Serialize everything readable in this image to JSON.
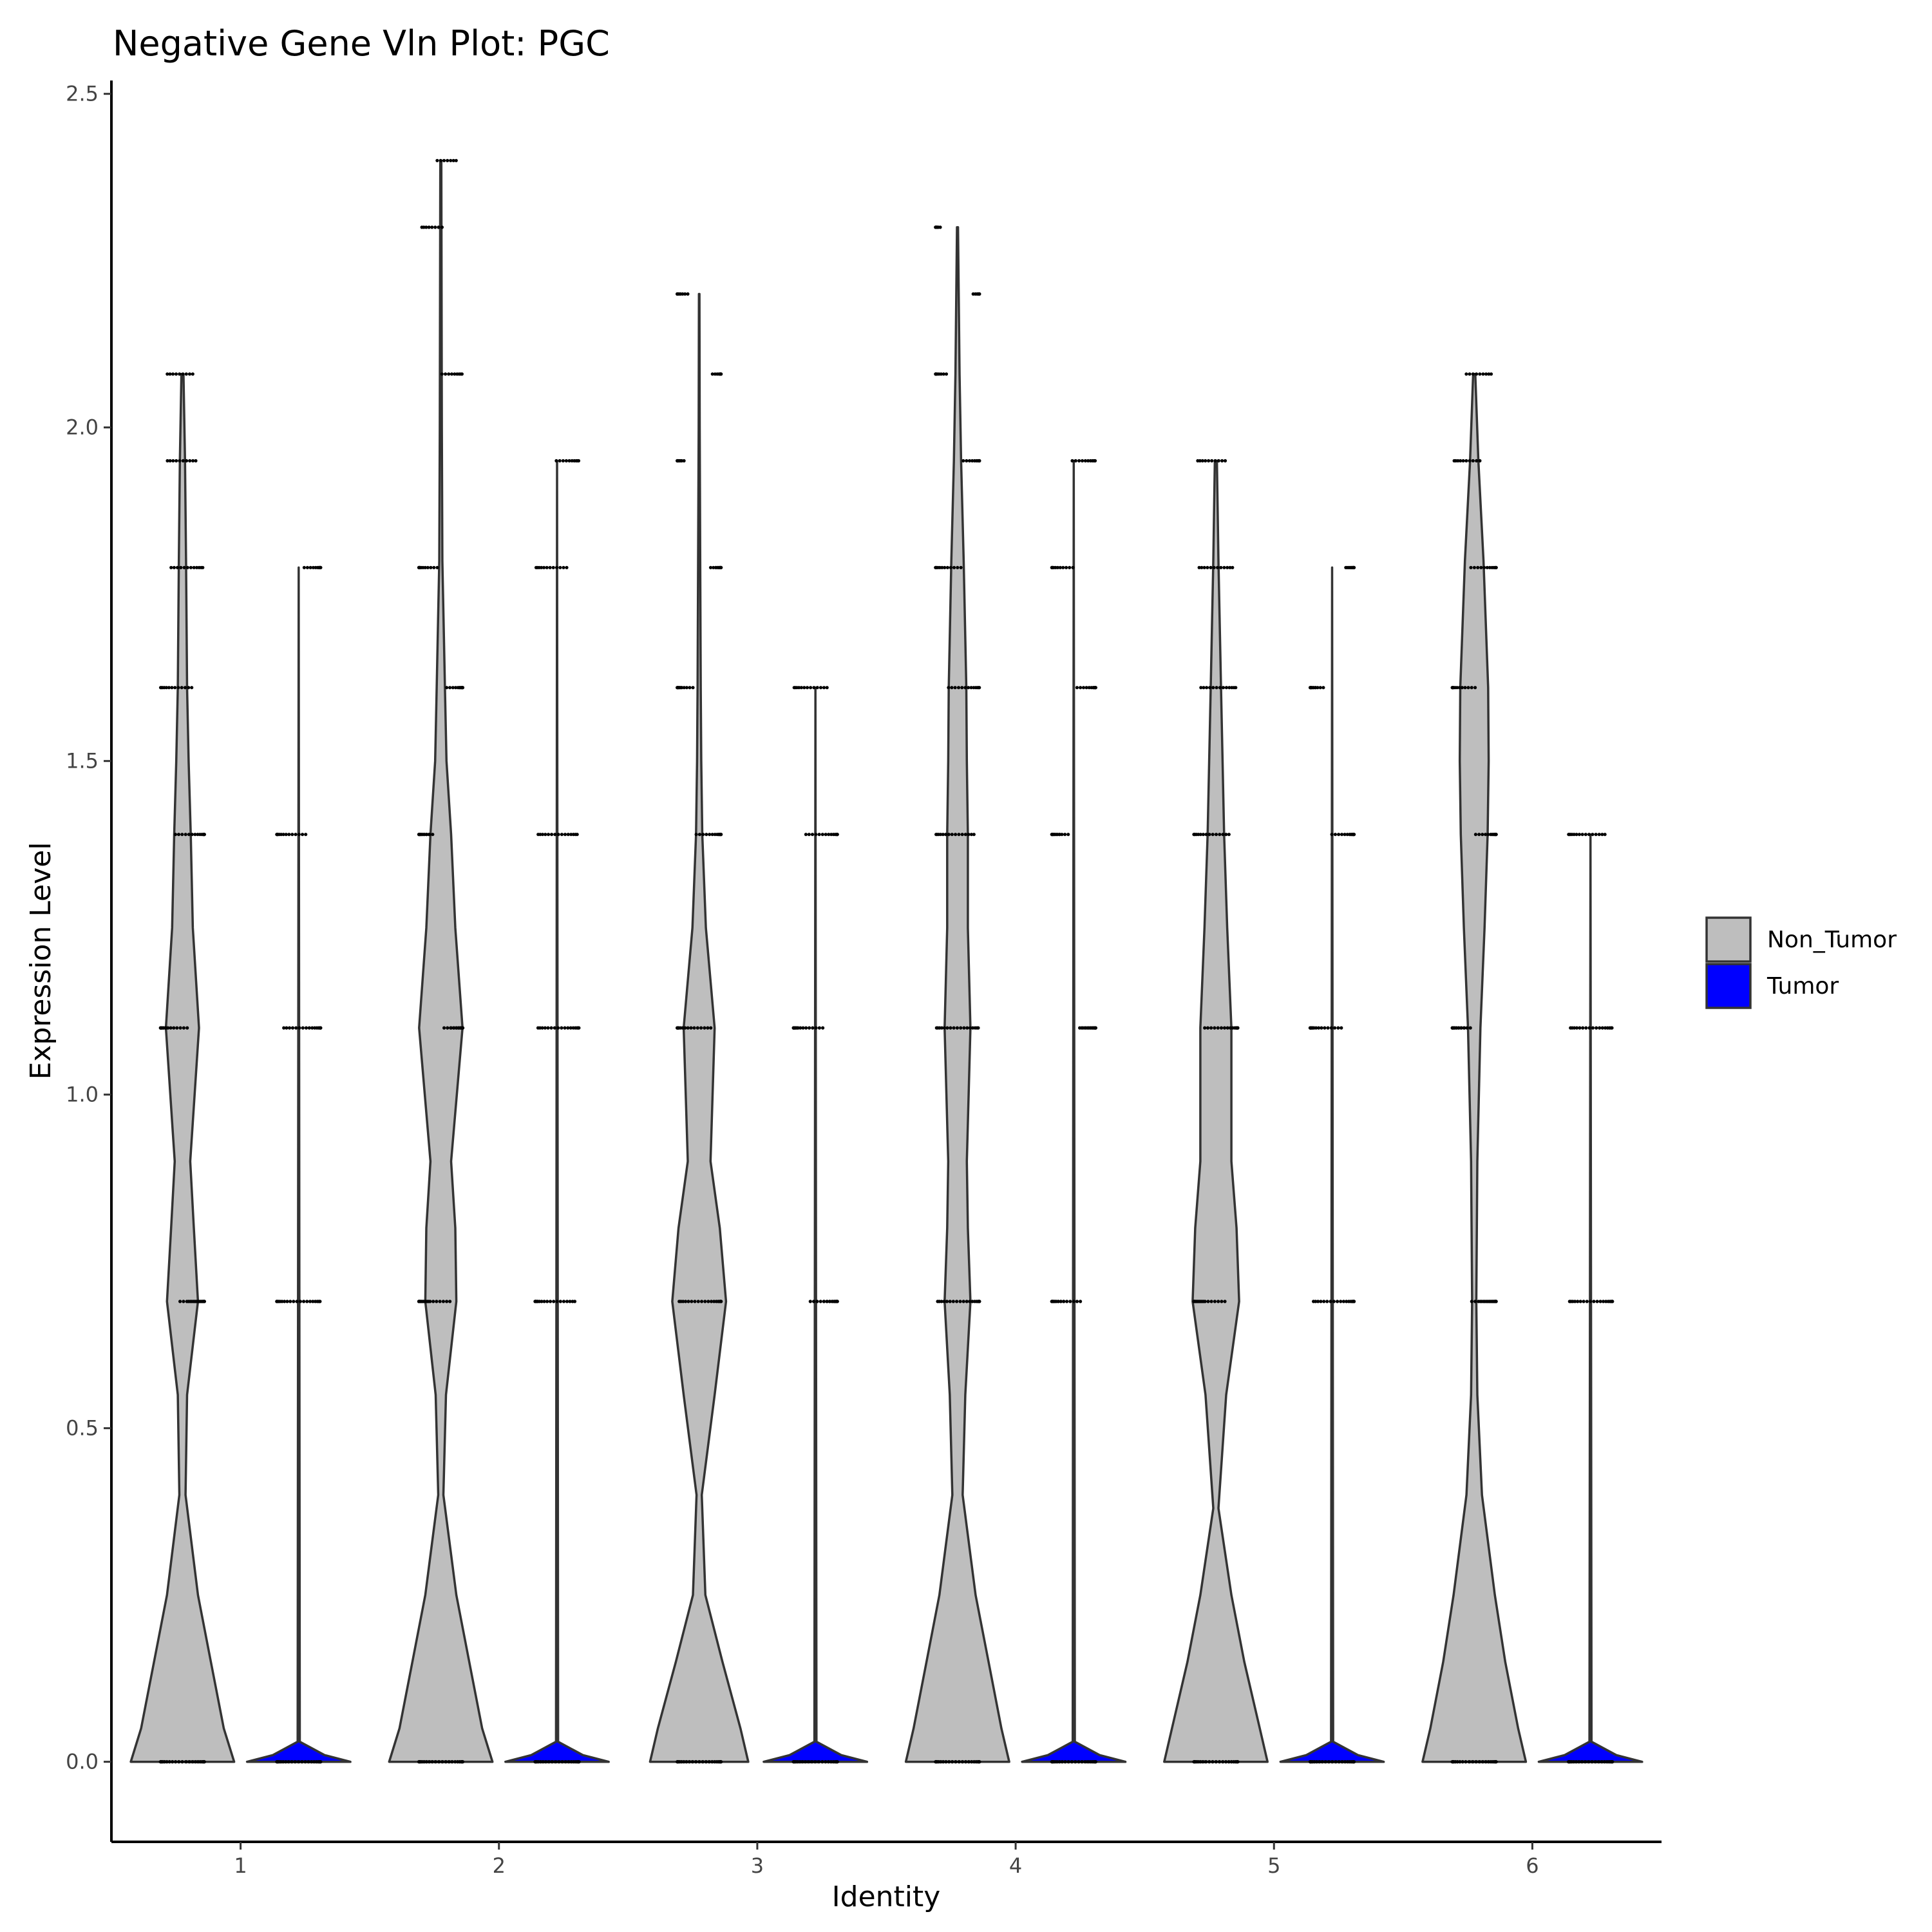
{
  "chart_data": {
    "type": "violin",
    "title": "Negative Gene Vln Plot: PGC",
    "xlabel": "Identity",
    "ylabel": "Expression Level",
    "categories": [
      "1",
      "2",
      "3",
      "4",
      "5",
      "6"
    ],
    "ylim": [
      -0.12,
      2.52
    ],
    "yticks": [
      0.0,
      0.5,
      1.0,
      1.5,
      2.0,
      2.5
    ],
    "ytick_labels": [
      "0.0",
      "0.5",
      "1.0",
      "1.5",
      "2.0",
      "2.5"
    ],
    "grid": false,
    "legend_position": "right",
    "series": [
      {
        "name": "Non_Tumor",
        "fill": "#bebebe",
        "violins": [
          {
            "category": "1",
            "max": 2.08,
            "density": [
              [
                0.0,
                1.0
              ],
              [
                0.05,
                0.8
              ],
              [
                0.15,
                0.55
              ],
              [
                0.25,
                0.3
              ],
              [
                0.4,
                0.06
              ],
              [
                0.55,
                0.09
              ],
              [
                0.69,
                0.3
              ],
              [
                0.8,
                0.22
              ],
              [
                0.9,
                0.15
              ],
              [
                1.1,
                0.32
              ],
              [
                1.25,
                0.2
              ],
              [
                1.39,
                0.16
              ],
              [
                1.5,
                0.12
              ],
              [
                1.61,
                0.09
              ],
              [
                1.8,
                0.07
              ],
              [
                1.95,
                0.05
              ],
              [
                2.08,
                0.02
              ]
            ],
            "point_levels": [
              0.0,
              0.69,
              1.1,
              1.39,
              1.61,
              1.79,
              1.95,
              2.08
            ]
          },
          {
            "category": "2",
            "max": 2.4,
            "density": [
              [
                0.0,
                1.0
              ],
              [
                0.05,
                0.8
              ],
              [
                0.15,
                0.55
              ],
              [
                0.25,
                0.3
              ],
              [
                0.4,
                0.05
              ],
              [
                0.55,
                0.1
              ],
              [
                0.69,
                0.3
              ],
              [
                0.8,
                0.28
              ],
              [
                0.9,
                0.2
              ],
              [
                1.1,
                0.42
              ],
              [
                1.25,
                0.28
              ],
              [
                1.39,
                0.2
              ],
              [
                1.5,
                0.11
              ],
              [
                1.61,
                0.08
              ],
              [
                1.8,
                0.03
              ],
              [
                2.0,
                0.02
              ],
              [
                2.4,
                0.01
              ]
            ],
            "point_levels": [
              0.0,
              0.69,
              1.1,
              1.39,
              1.61,
              1.79,
              2.08,
              2.3,
              2.4
            ]
          },
          {
            "category": "3",
            "max": 2.2,
            "density": [
              [
                0.0,
                0.95
              ],
              [
                0.05,
                0.8
              ],
              [
                0.15,
                0.45
              ],
              [
                0.25,
                0.12
              ],
              [
                0.4,
                0.05
              ],
              [
                0.55,
                0.3
              ],
              [
                0.69,
                0.52
              ],
              [
                0.8,
                0.4
              ],
              [
                0.9,
                0.22
              ],
              [
                1.1,
                0.3
              ],
              [
                1.25,
                0.13
              ],
              [
                1.39,
                0.06
              ],
              [
                1.5,
                0.04
              ],
              [
                1.61,
                0.03
              ],
              [
                1.8,
                0.02
              ],
              [
                2.0,
                0.01
              ],
              [
                2.2,
                0.005
              ]
            ],
            "point_levels": [
              0.0,
              0.69,
              1.1,
              1.39,
              1.61,
              1.79,
              1.95,
              2.08,
              2.2
            ]
          },
          {
            "category": "4",
            "max": 2.3,
            "density": [
              [
                0.0,
                1.0
              ],
              [
                0.05,
                0.85
              ],
              [
                0.15,
                0.6
              ],
              [
                0.25,
                0.35
              ],
              [
                0.4,
                0.1
              ],
              [
                0.55,
                0.15
              ],
              [
                0.69,
                0.25
              ],
              [
                0.8,
                0.2
              ],
              [
                0.9,
                0.18
              ],
              [
                1.1,
                0.25
              ],
              [
                1.25,
                0.2
              ],
              [
                1.39,
                0.2
              ],
              [
                1.5,
                0.18
              ],
              [
                1.61,
                0.17
              ],
              [
                1.8,
                0.12
              ],
              [
                1.95,
                0.07
              ],
              [
                2.08,
                0.04
              ],
              [
                2.3,
                0.01
              ]
            ],
            "point_levels": [
              0.0,
              0.69,
              1.1,
              1.39,
              1.61,
              1.79,
              1.95,
              2.08,
              2.2,
              2.3
            ]
          },
          {
            "category": "5",
            "max": 1.95,
            "density": [
              [
                0.0,
                1.0
              ],
              [
                0.05,
                0.85
              ],
              [
                0.15,
                0.55
              ],
              [
                0.25,
                0.3
              ],
              [
                0.38,
                0.05
              ],
              [
                0.55,
                0.2
              ],
              [
                0.69,
                0.45
              ],
              [
                0.8,
                0.4
              ],
              [
                0.9,
                0.3
              ],
              [
                1.1,
                0.3
              ],
              [
                1.25,
                0.22
              ],
              [
                1.39,
                0.16
              ],
              [
                1.5,
                0.13
              ],
              [
                1.61,
                0.1
              ],
              [
                1.8,
                0.05
              ],
              [
                1.95,
                0.02
              ]
            ],
            "point_levels": [
              0.0,
              0.69,
              1.1,
              1.39,
              1.61,
              1.79,
              1.95
            ]
          },
          {
            "category": "6",
            "max": 2.08,
            "density": [
              [
                0.0,
                1.0
              ],
              [
                0.05,
                0.85
              ],
              [
                0.15,
                0.6
              ],
              [
                0.25,
                0.4
              ],
              [
                0.4,
                0.15
              ],
              [
                0.55,
                0.06
              ],
              [
                0.69,
                0.04
              ],
              [
                0.9,
                0.06
              ],
              [
                1.1,
                0.12
              ],
              [
                1.25,
                0.2
              ],
              [
                1.39,
                0.26
              ],
              [
                1.5,
                0.28
              ],
              [
                1.61,
                0.27
              ],
              [
                1.8,
                0.18
              ],
              [
                1.95,
                0.08
              ],
              [
                2.08,
                0.02
              ]
            ],
            "point_levels": [
              0.0,
              0.69,
              1.1,
              1.39,
              1.61,
              1.79,
              1.95,
              2.08
            ]
          }
        ]
      },
      {
        "name": "Tumor",
        "fill": "#0000ff",
        "violins": [
          {
            "category": "1",
            "max": 1.79,
            "density": [
              [
                0.0,
                1.0
              ],
              [
                0.01,
                0.5
              ],
              [
                0.03,
                0.02
              ],
              [
                1.79,
                0.0
              ]
            ],
            "point_levels": [
              0.0,
              0.69,
              1.1,
              1.39,
              1.79
            ]
          },
          {
            "category": "2",
            "max": 1.95,
            "density": [
              [
                0.0,
                1.0
              ],
              [
                0.01,
                0.5
              ],
              [
                0.03,
                0.02
              ],
              [
                1.95,
                0.0
              ]
            ],
            "point_levels": [
              0.0,
              0.69,
              1.1,
              1.39,
              1.79,
              1.95
            ]
          },
          {
            "category": "3",
            "max": 1.61,
            "density": [
              [
                0.0,
                1.0
              ],
              [
                0.01,
                0.5
              ],
              [
                0.03,
                0.02
              ],
              [
                1.61,
                0.0
              ]
            ],
            "point_levels": [
              0.0,
              0.69,
              1.1,
              1.39,
              1.61
            ]
          },
          {
            "category": "4",
            "max": 1.95,
            "density": [
              [
                0.0,
                1.0
              ],
              [
                0.01,
                0.5
              ],
              [
                0.03,
                0.02
              ],
              [
                1.95,
                0.0
              ]
            ],
            "point_levels": [
              0.0,
              0.69,
              1.1,
              1.39,
              1.61,
              1.79,
              1.95
            ]
          },
          {
            "category": "5",
            "max": 1.79,
            "density": [
              [
                0.0,
                1.0
              ],
              [
                0.01,
                0.5
              ],
              [
                0.03,
                0.02
              ],
              [
                1.79,
                0.0
              ]
            ],
            "point_levels": [
              0.0,
              0.69,
              1.1,
              1.39,
              1.61,
              1.79
            ]
          },
          {
            "category": "6",
            "max": 1.39,
            "density": [
              [
                0.0,
                1.0
              ],
              [
                0.01,
                0.5
              ],
              [
                0.03,
                0.02
              ],
              [
                1.39,
                0.0
              ]
            ],
            "point_levels": [
              0.0,
              0.69,
              1.1,
              1.39
            ]
          }
        ]
      }
    ],
    "legend": [
      {
        "label": "Non_Tumor",
        "color": "#bebebe"
      },
      {
        "label": "Tumor",
        "color": "#0000ff"
      }
    ]
  }
}
